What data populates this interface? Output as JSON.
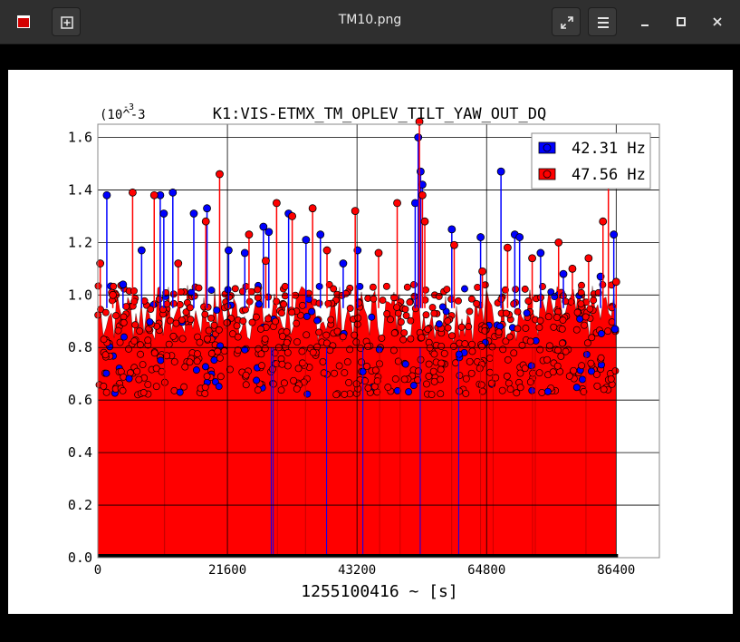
{
  "window": {
    "title": "TM10.png",
    "buttons": {
      "app_icon": "app-icon",
      "new_tab": "new-tab-icon",
      "fullscreen": "fullscreen-icon",
      "menu": "hamburger-menu-icon",
      "minimize": "minimize-icon",
      "maximize": "maximize-icon",
      "close": "close-icon"
    }
  },
  "colors": {
    "titlebar": "#2f2f2f",
    "viewer_bg": "#000000",
    "series_blue": "#0000ff",
    "series_red": "#ff0000"
  },
  "chart_data": {
    "type": "line",
    "title": "K1:VIS-ETMX_TM_OPLEV_TILT_YAW_OUT_DQ",
    "xlabel": "1255100416 ~ [s]",
    "ylabel": "",
    "y_multiplier": "(10^-3",
    "xlim": [
      0,
      93600
    ],
    "ylim": [
      0.0,
      1.65
    ],
    "xticks": [
      "0",
      "21600",
      "43200",
      "64800",
      "86400"
    ],
    "yticks": [
      "0.0",
      "0.2",
      "0.4",
      "0.6",
      "0.8",
      "1.0",
      "1.2",
      "1.4",
      "1.6"
    ],
    "grid": true,
    "legend_position": "top-right",
    "style": "stem",
    "series": [
      {
        "name": "42.31 Hz",
        "color": "#0000ff",
        "x": [
          1500,
          4200,
          7300,
          10400,
          11000,
          12500,
          16000,
          18200,
          21800,
          24500,
          27600,
          28500,
          31800,
          34700,
          37100,
          40900,
          43300,
          52900,
          53400,
          53800,
          54100,
          59000,
          63800,
          67200,
          69500,
          70300,
          73800,
          77600,
          83800,
          86000,
          86200
        ],
        "values": [
          1.38,
          1.04,
          1.17,
          1.38,
          1.31,
          1.39,
          1.31,
          1.33,
          1.17,
          1.16,
          1.26,
          1.24,
          1.31,
          1.21,
          1.23,
          1.12,
          1.17,
          1.35,
          1.6,
          1.47,
          1.42,
          1.25,
          1.22,
          1.47,
          1.23,
          1.22,
          1.16,
          1.08,
          1.07,
          1.23,
          0.87
        ]
      },
      {
        "name": "47.56 Hz",
        "color": "#ff0000",
        "x": [
          400,
          2500,
          5800,
          9400,
          13400,
          18000,
          20300,
          25200,
          28000,
          29800,
          32400,
          35800,
          38200,
          42900,
          46800,
          49900,
          53600,
          54100,
          54500,
          59400,
          64100,
          68300,
          72400,
          76800,
          79100,
          81800,
          84200,
          85100,
          86400
        ],
        "values": [
          1.12,
          1.0,
          1.39,
          1.38,
          1.12,
          1.28,
          1.46,
          1.23,
          1.13,
          1.35,
          1.3,
          1.33,
          1.17,
          1.32,
          1.16,
          1.35,
          1.66,
          1.38,
          1.28,
          1.19,
          1.09,
          1.18,
          1.14,
          1.2,
          1.1,
          1.14,
          1.28,
          1.44,
          1.05
        ]
      }
    ],
    "fill_series": {
      "color": "#ff0000",
      "x": [
        0,
        86400
      ],
      "floor_values": [
        0.8,
        0.8
      ]
    }
  }
}
